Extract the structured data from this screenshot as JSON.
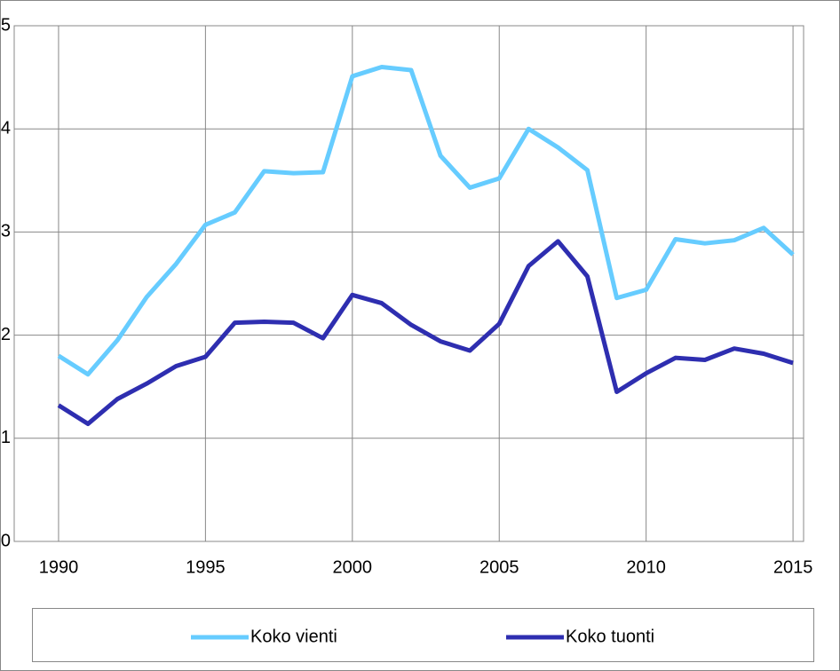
{
  "chart_data": {
    "type": "line",
    "x": [
      1990,
      1991,
      1992,
      1993,
      1994,
      1995,
      1996,
      1997,
      1998,
      1999,
      2000,
      2001,
      2002,
      2003,
      2004,
      2005,
      2006,
      2007,
      2008,
      2009,
      2010,
      2011,
      2012,
      2013,
      2014,
      2015
    ],
    "series": [
      {
        "name": "Koko vienti",
        "color": "#66ccff",
        "values": [
          1.8,
          1.62,
          1.95,
          2.37,
          2.69,
          3.07,
          3.19,
          3.59,
          3.57,
          3.58,
          4.51,
          4.6,
          4.57,
          3.74,
          3.43,
          3.52,
          4.0,
          3.82,
          3.6,
          2.36,
          2.44,
          2.93,
          2.89,
          2.92,
          3.04,
          2.78
        ]
      },
      {
        "name": "Koko tuonti",
        "color": "#2e2eb0",
        "values": [
          1.32,
          1.14,
          1.38,
          1.53,
          1.7,
          1.79,
          2.12,
          2.13,
          2.12,
          1.97,
          2.39,
          2.31,
          2.1,
          1.94,
          1.85,
          2.11,
          2.67,
          2.91,
          2.57,
          1.45,
          1.63,
          1.78,
          1.76,
          1.87,
          1.82,
          1.73
        ]
      }
    ],
    "xlim": [
      1988.49,
      2015.36
    ],
    "xticks": [
      1990,
      1995,
      2000,
      2005,
      2010,
      2015
    ],
    "ylim": [
      0,
      5
    ],
    "yticks": [
      0,
      1,
      2,
      3,
      4,
      5
    ],
    "grid": true
  }
}
